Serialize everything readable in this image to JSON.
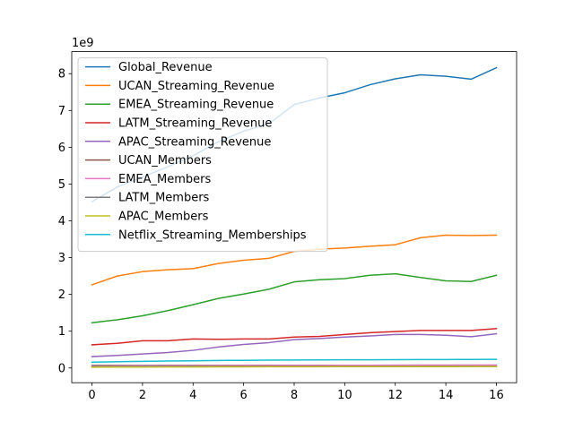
{
  "chart_data": {
    "type": "line",
    "title": "",
    "xlabel": "",
    "ylabel": "",
    "y_multiplier_label": "1e9",
    "x": [
      0,
      1,
      2,
      3,
      4,
      5,
      6,
      7,
      8,
      9,
      10,
      11,
      12,
      13,
      14,
      15,
      16
    ],
    "xlim": [
      -0.8,
      16.8
    ],
    "ylim": [
      -0.4,
      8.6
    ],
    "x_ticks": [
      0,
      2,
      4,
      6,
      8,
      10,
      12,
      14,
      16
    ],
    "y_ticks": [
      0,
      1,
      2,
      3,
      4,
      5,
      6,
      7,
      8
    ],
    "grid": false,
    "legend_position": "upper-left",
    "series": [
      {
        "name": "Global_Revenue",
        "color": "#1f77b4",
        "values": [
          4.52,
          4.92,
          5.19,
          5.47,
          5.77,
          6.15,
          6.44,
          6.64,
          7.16,
          7.34,
          7.48,
          7.7,
          7.86,
          7.97,
          7.93,
          7.85,
          8.16
        ]
      },
      {
        "name": "UCAN_Streaming_Revenue",
        "color": "#ff7f0e",
        "values": [
          2.26,
          2.5,
          2.62,
          2.67,
          2.7,
          2.84,
          2.93,
          2.98,
          3.17,
          3.23,
          3.26,
          3.31,
          3.35,
          3.54,
          3.61,
          3.6,
          3.61
        ]
      },
      {
        "name": "EMEA_Streaming_Revenue",
        "color": "#2ca02c",
        "values": [
          1.23,
          1.31,
          1.42,
          1.56,
          1.72,
          1.89,
          2.01,
          2.14,
          2.34,
          2.4,
          2.43,
          2.52,
          2.56,
          2.46,
          2.37,
          2.35,
          2.52
        ]
      },
      {
        "name": "LATM_Streaming_Revenue",
        "color": "#d62728",
        "values": [
          0.63,
          0.67,
          0.74,
          0.74,
          0.79,
          0.78,
          0.79,
          0.79,
          0.84,
          0.86,
          0.91,
          0.96,
          0.99,
          1.02,
          1.02,
          1.02,
          1.07
        ]
      },
      {
        "name": "APAC_Streaming_Revenue",
        "color": "#9467bd",
        "values": [
          0.31,
          0.34,
          0.38,
          0.42,
          0.48,
          0.57,
          0.64,
          0.69,
          0.77,
          0.8,
          0.84,
          0.87,
          0.91,
          0.91,
          0.89,
          0.85,
          0.93
        ]
      },
      {
        "name": "UCAN_Members",
        "color": "#8c564b",
        "values": [
          0.066,
          0.068,
          0.069,
          0.07,
          0.071,
          0.072,
          0.072,
          0.073,
          0.074,
          0.074,
          0.075,
          0.075,
          0.076,
          0.076,
          0.076,
          0.077,
          0.078
        ]
      },
      {
        "name": "EMEA_Members",
        "color": "#e377c2",
        "values": [
          0.047,
          0.051,
          0.055,
          0.058,
          0.061,
          0.064,
          0.066,
          0.068,
          0.07,
          0.072,
          0.073,
          0.074,
          0.075,
          0.076,
          0.077,
          0.078,
          0.08
        ]
      },
      {
        "name": "LATM_Members",
        "color": "#7f7f7f",
        "values": [
          0.035,
          0.036,
          0.037,
          0.038,
          0.039,
          0.04,
          0.04,
          0.041,
          0.041,
          0.041,
          0.042,
          0.042,
          0.042,
          0.042,
          0.042,
          0.043,
          0.043
        ]
      },
      {
        "name": "APAC_Members",
        "color": "#bcbd22",
        "values": [
          0.022,
          0.024,
          0.026,
          0.028,
          0.029,
          0.03,
          0.032,
          0.033,
          0.034,
          0.035,
          0.036,
          0.037,
          0.038,
          0.038,
          0.038,
          0.039,
          0.04
        ]
      },
      {
        "name": "Netflix_Streaming_Memberships",
        "color": "#17becf",
        "values": [
          0.16,
          0.17,
          0.18,
          0.19,
          0.195,
          0.205,
          0.209,
          0.214,
          0.218,
          0.22,
          0.222,
          0.224,
          0.226,
          0.228,
          0.23,
          0.232,
          0.235
        ]
      }
    ]
  }
}
